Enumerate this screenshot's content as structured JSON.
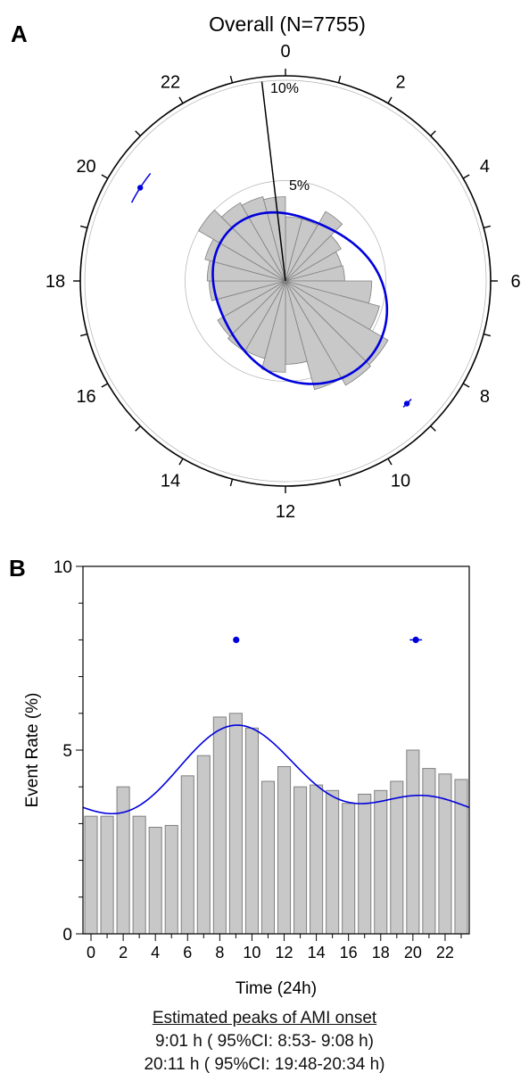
{
  "panel_a": {
    "letter": "A"
  },
  "panel_b": {
    "letter": "B"
  },
  "colors": {
    "bar_fill": "#c8c8c8",
    "bar_stroke": "#808080",
    "curve": "#0000dd",
    "axis": "#000000",
    "ring": "#b0b0b0"
  },
  "footnote": {
    "title": "Estimated peaks of AMI onset",
    "line1": "9:01 h ( 95%CI: 8:53- 9:08 h)",
    "line2": "20:11 h ( 95%CI: 19:48-20:34 h)"
  },
  "chart_data": [
    {
      "type": "bar",
      "subtype": "polar-rose",
      "title": "Overall (N=7755)",
      "hour_labels": [
        "0",
        "2",
        "4",
        "6",
        "8",
        "10",
        "12",
        "14",
        "16",
        "18",
        "20",
        "22"
      ],
      "ring_labels": [
        "5%",
        "10%"
      ],
      "rmax_percent": 10,
      "categories": [
        0,
        1,
        2,
        3,
        4,
        5,
        6,
        7,
        8,
        9,
        10,
        11,
        12,
        13,
        14,
        15,
        16,
        17,
        18,
        19,
        20,
        21,
        22,
        23
      ],
      "values": [
        3.2,
        3.2,
        4.0,
        3.2,
        2.9,
        2.95,
        4.3,
        4.85,
        5.9,
        6.0,
        5.6,
        4.15,
        4.55,
        4.0,
        4.05,
        3.9,
        3.55,
        3.8,
        3.9,
        4.15,
        5.0,
        4.5,
        4.35,
        4.2
      ],
      "fitted_curve": "two-harmonic cosinor fit",
      "peaks": [
        {
          "label": "9:01 h",
          "hour": 9.02,
          "ci": [
            8.88,
            9.13
          ],
          "value": 6.0
        },
        {
          "label": "20:11 h",
          "hour": 20.18,
          "ci": [
            19.8,
            20.57
          ],
          "value": 4.57
        }
      ],
      "peak_marker_radius_percent": 8.6
    },
    {
      "type": "bar",
      "xlabel": "Time (24h)",
      "ylabel": "Event Rate (%)",
      "ylim": [
        0,
        10
      ],
      "xlim": [
        -0.5,
        23.5
      ],
      "yticks": [
        0,
        5,
        10
      ],
      "xticks": [
        0,
        2,
        4,
        6,
        8,
        10,
        12,
        14,
        16,
        18,
        20,
        22
      ],
      "categories": [
        0,
        1,
        2,
        3,
        4,
        5,
        6,
        7,
        8,
        9,
        10,
        11,
        12,
        13,
        14,
        15,
        16,
        17,
        18,
        19,
        20,
        21,
        22,
        23
      ],
      "values": [
        3.2,
        3.2,
        4.0,
        3.2,
        2.9,
        2.95,
        4.3,
        4.85,
        5.9,
        6.0,
        5.6,
        4.15,
        4.55,
        4.0,
        4.05,
        3.9,
        3.55,
        3.8,
        3.9,
        4.15,
        5.0,
        4.5,
        4.35,
        4.2
      ],
      "peaks": [
        {
          "label": "9:01 h",
          "hour": 9.02,
          "ci": [
            8.88,
            9.13
          ],
          "marker_value": 8.0
        },
        {
          "label": "20:11 h",
          "hour": 20.18,
          "ci": [
            19.8,
            20.57
          ],
          "marker_value": 8.0
        }
      ],
      "grid": false
    }
  ]
}
